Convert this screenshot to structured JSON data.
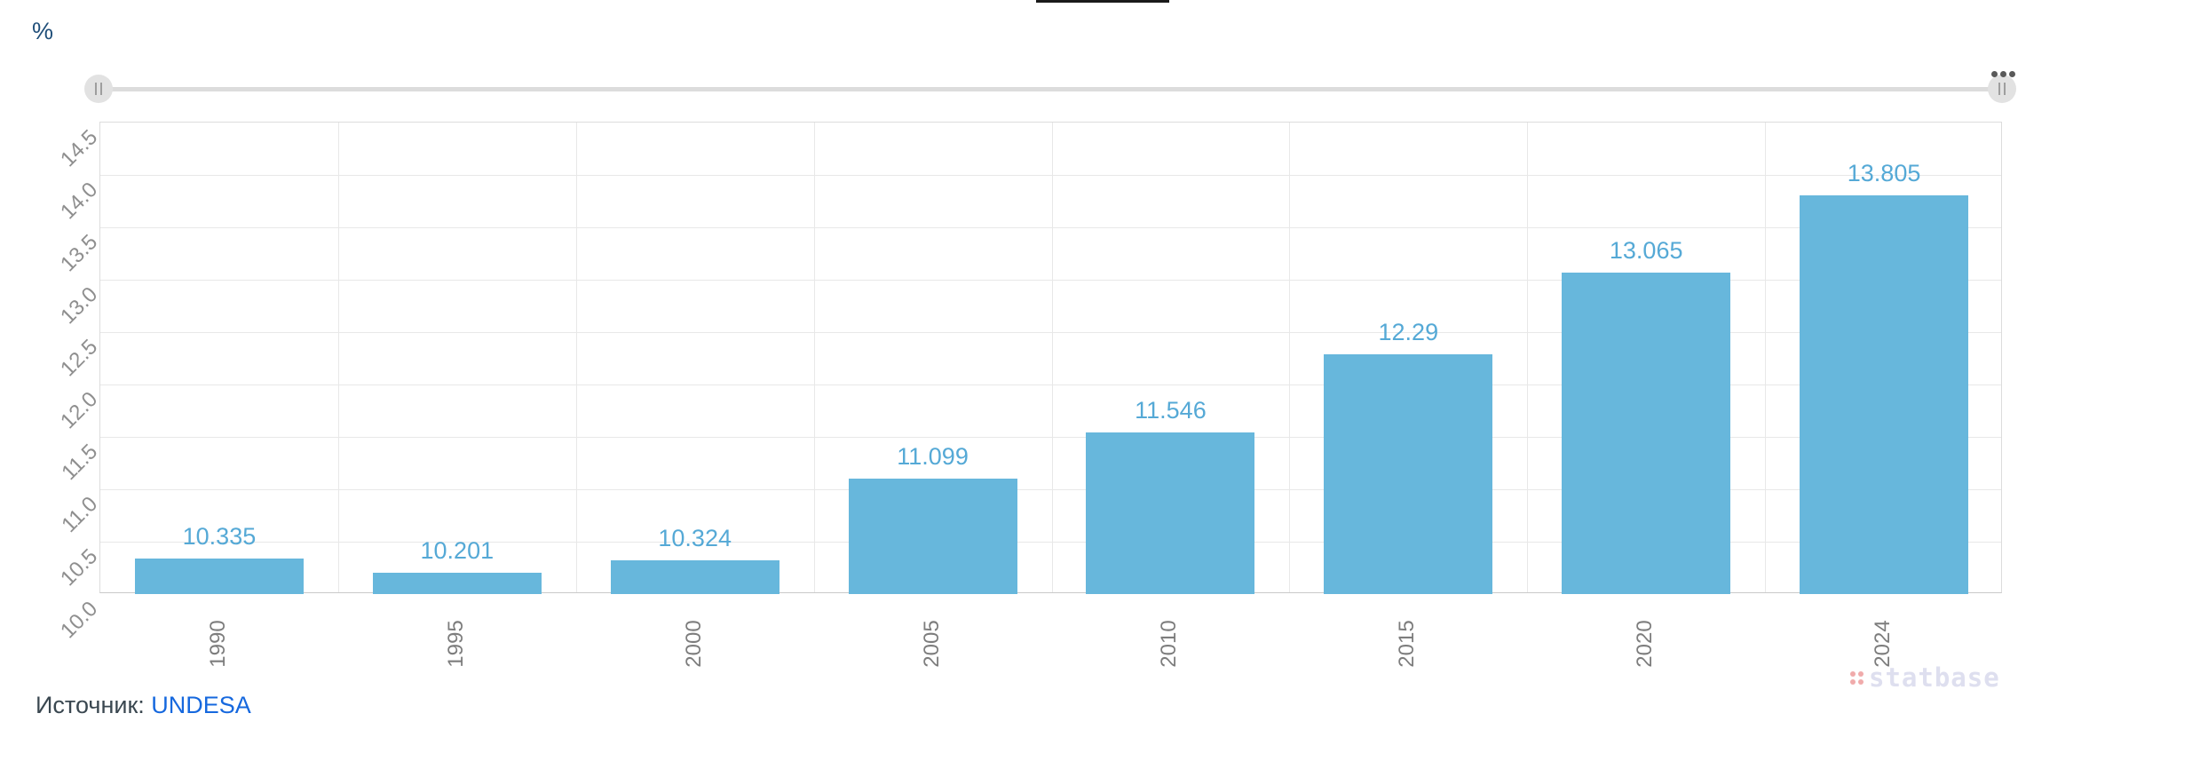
{
  "unit_label": "%",
  "chart_data": {
    "type": "bar",
    "categories": [
      "1990",
      "1995",
      "2000",
      "2005",
      "2010",
      "2015",
      "2020",
      "2024"
    ],
    "values": [
      10.335,
      10.201,
      10.324,
      11.099,
      11.546,
      12.29,
      13.065,
      13.805
    ],
    "value_labels": [
      "10.335",
      "10.201",
      "10.324",
      "11.099",
      "11.546",
      "12.29",
      "13.065",
      "13.805"
    ],
    "title": "",
    "xlabel": "",
    "ylabel": "%",
    "ylim": [
      10.0,
      14.5
    ],
    "ytick_step": 0.5,
    "ytick_labels": [
      "10.0",
      "10.5",
      "11.0",
      "11.5",
      "12.0",
      "12.5",
      "13.0",
      "13.5",
      "14.0",
      "14.5"
    ],
    "grid": true,
    "legend": "none",
    "bar_color": "#67B7DC",
    "value_label_color": "#55A9D6"
  },
  "scrollbar": {
    "left_handle_icon": "drag-grip",
    "right_handle_icon": "drag-grip",
    "menu_icon": "ellipsis"
  },
  "source": {
    "label": "Источник:",
    "link_text": "UNDESA"
  },
  "watermark": {
    "logo_icon": "statbase-dots",
    "text": "statbase"
  },
  "colors": {
    "bar": "#67B7DC",
    "value_label": "#55A9D6",
    "y_axis_label": "#8f8f8f",
    "x_axis_label": "#7d7d7d",
    "grid_line": "#e8e8e8",
    "plot_border": "#dcdcdc",
    "axis_bottom_line": "#c9c9c9",
    "unit_label": "#1F4E79",
    "source_text": "#3A4750",
    "source_link": "#1668DE",
    "watermark_text": "#DEDFEF",
    "watermark_dots": "#F0ABAB",
    "scrollbar_track": "#dcdcdc",
    "scrollbar_handle": "#e2e2e2",
    "scrollbar_grip": "#9e9e9e",
    "menu_dots": "#595959",
    "top_line": "#1a1a1a"
  }
}
